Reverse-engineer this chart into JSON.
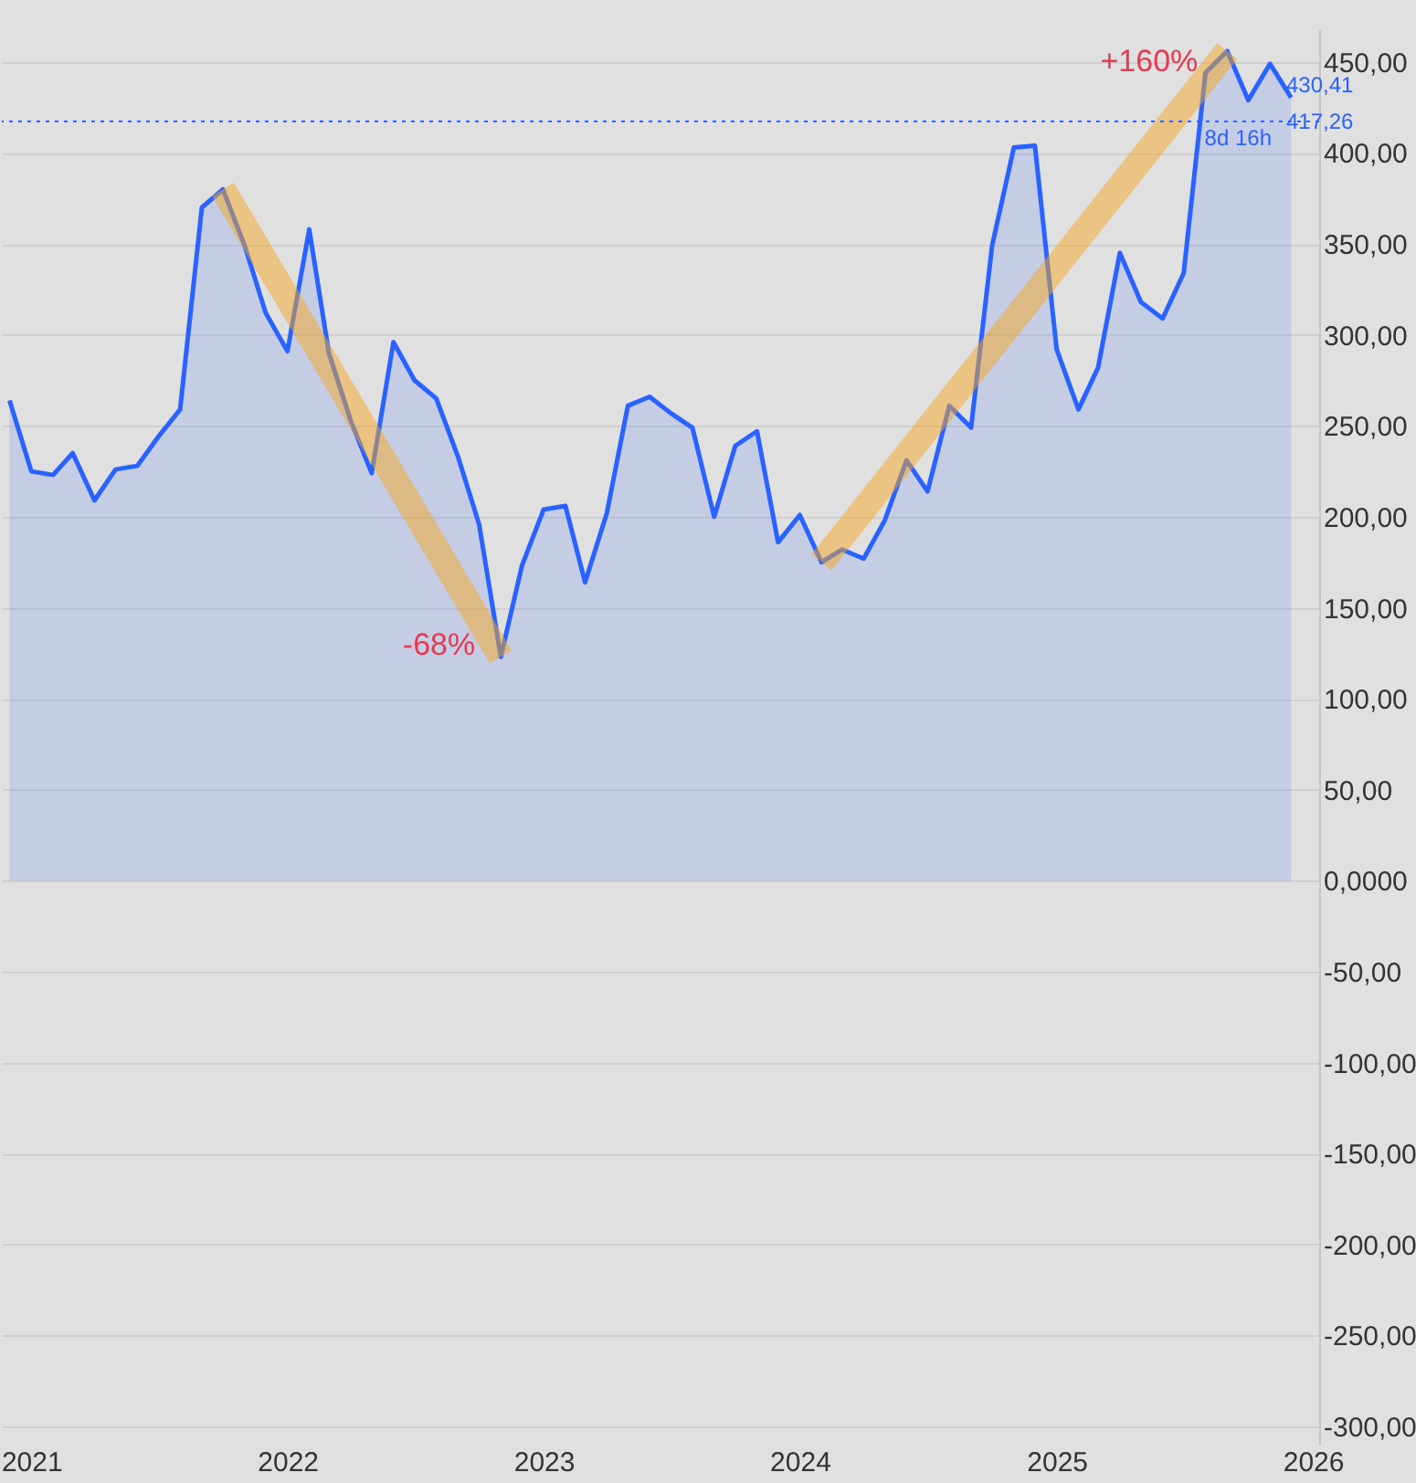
{
  "chart_data": {
    "type": "area",
    "x": [
      "2020-12",
      "2021-01",
      "2021-02",
      "2021-03",
      "2021-04",
      "2021-05",
      "2021-06",
      "2021-07",
      "2021-08",
      "2021-09",
      "2021-10",
      "2021-11",
      "2021-12",
      "2022-01",
      "2022-02",
      "2022-03",
      "2022-04",
      "2022-05",
      "2022-06",
      "2022-07",
      "2022-08",
      "2022-09",
      "2022-10",
      "2022-11",
      "2022-12",
      "2023-01",
      "2023-02",
      "2023-03",
      "2023-04",
      "2023-05",
      "2023-06",
      "2023-07",
      "2023-08",
      "2023-09",
      "2023-10",
      "2023-11",
      "2023-12",
      "2024-01",
      "2024-02",
      "2024-03",
      "2024-04",
      "2024-05",
      "2024-06",
      "2024-07",
      "2024-08",
      "2024-09",
      "2024-10",
      "2024-11",
      "2024-12",
      "2025-01",
      "2025-02",
      "2025-03",
      "2025-04",
      "2025-05",
      "2025-06",
      "2025-07",
      "2025-08",
      "2025-09",
      "2025-10",
      "2025-11",
      "2025-12"
    ],
    "series": [
      {
        "color": "#2962ff",
        "values": [
          264,
          225,
          223,
          235,
          209,
          226,
          228,
          244,
          259,
          370,
          380,
          349,
          312,
          291,
          358,
          290,
          253,
          224,
          296,
          275,
          265,
          233,
          196,
          123,
          173,
          204,
          206,
          164,
          202,
          261,
          266,
          257,
          249,
          200,
          239,
          247,
          186,
          201,
          175,
          182,
          177,
          198,
          231,
          214,
          261,
          249,
          349,
          403,
          404,
          292,
          259,
          282,
          345,
          318,
          309,
          334,
          444,
          456,
          429,
          449,
          430.41
        ],
        "value_labels": [
          null,
          null,
          null,
          null,
          null,
          null,
          null,
          null,
          null,
          null,
          null,
          null,
          null,
          null,
          null,
          null,
          null,
          null,
          null,
          null,
          null,
          null,
          null,
          null,
          null,
          null,
          null,
          null,
          null,
          null,
          null,
          null,
          null,
          null,
          null,
          null,
          null,
          null,
          null,
          null,
          null,
          null,
          null,
          null,
          null,
          null,
          null,
          null,
          null,
          null,
          null,
          null,
          null,
          null,
          null,
          null,
          null,
          null,
          null,
          null,
          "430,41"
        ]
      }
    ],
    "xlim": [
      "2020-11-20",
      "2026-01-10"
    ],
    "xticks": [
      {
        "value": "2021-01-01",
        "label": "2021"
      },
      {
        "value": "2022-01-01",
        "label": "2022"
      },
      {
        "value": "2023-01-01",
        "label": "2023"
      },
      {
        "value": "2024-01-01",
        "label": "2024"
      },
      {
        "value": "2025-01-01",
        "label": "2025"
      },
      {
        "value": "2026-01-01",
        "label": "2026"
      }
    ],
    "ylim": [
      -310,
      468
    ],
    "yticks": [
      {
        "value": -300,
        "label": "-300,00"
      },
      {
        "value": -250,
        "label": "-250,00"
      },
      {
        "value": -200,
        "label": "-200,00"
      },
      {
        "value": -150,
        "label": "-150,00"
      },
      {
        "value": -100,
        "label": "-100,00"
      },
      {
        "value": -50,
        "label": "-50,00"
      },
      {
        "value": 0,
        "label": "0,0000"
      },
      {
        "value": 50,
        "label": "50,00"
      },
      {
        "value": 100,
        "label": "100,00"
      },
      {
        "value": 150,
        "label": "150,00"
      },
      {
        "value": 200,
        "label": "200,00"
      },
      {
        "value": 250,
        "label": "250,00"
      },
      {
        "value": 300,
        "label": "300,00"
      },
      {
        "value": 350,
        "label": "350,00"
      },
      {
        "value": 400,
        "label": "400,00"
      },
      {
        "value": 450,
        "label": "450,00"
      }
    ],
    "ref_lines": [
      {
        "axis": "y",
        "value": 417.26,
        "label": "417,26",
        "color": "#2962ff",
        "line_style": "dotted"
      }
    ],
    "annotations": [
      {
        "text": "-68%",
        "x": "2022-11",
        "y": 123
      },
      "+160%",
      "8d 16h"
    ],
    "grid": "y",
    "legend": false
  }
}
